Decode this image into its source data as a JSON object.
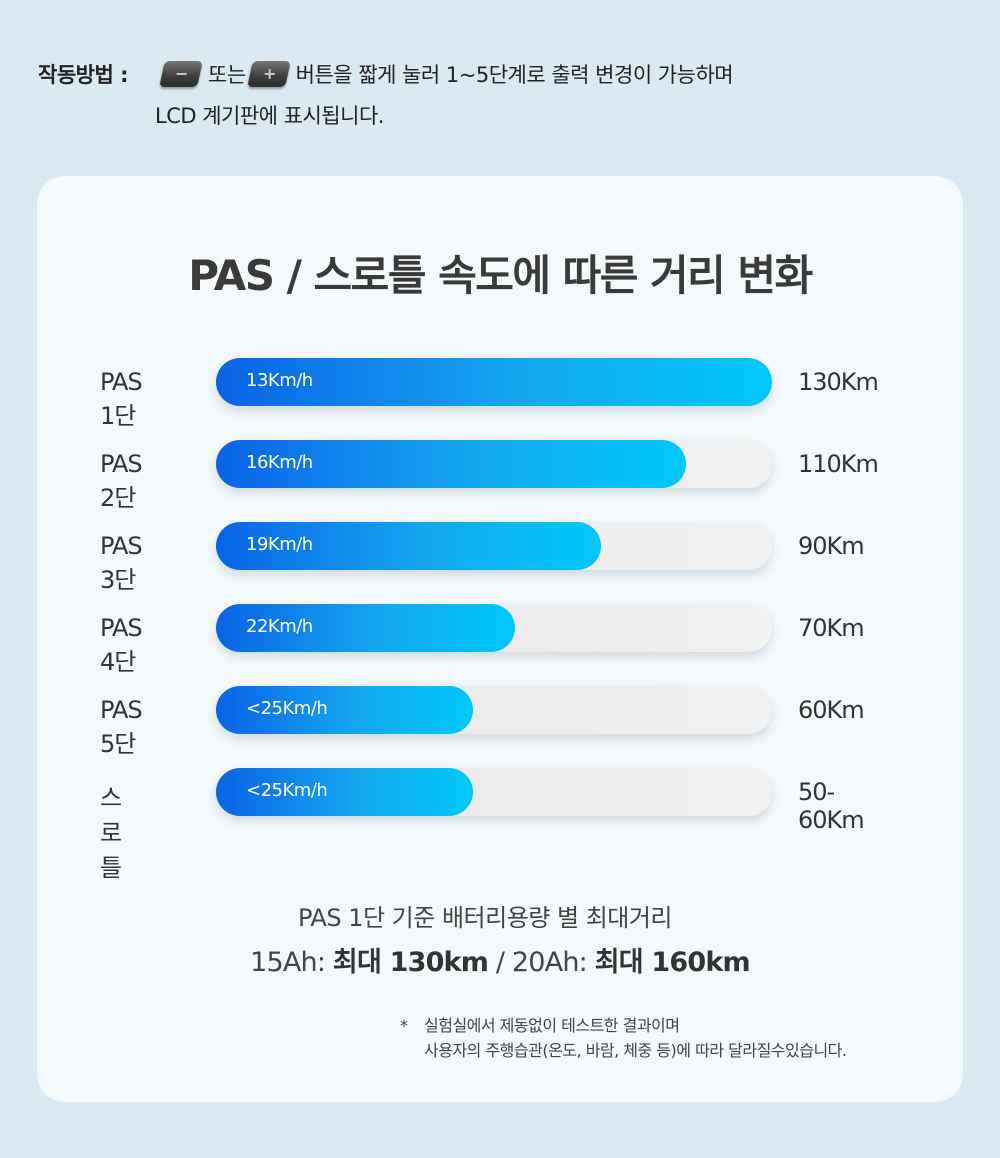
{
  "instructions": {
    "label": "작동방법 :",
    "icon_minus": "minus-key-icon",
    "icon_plus": "plus-key-icon",
    "or_text": "또는",
    "line1": "버튼을 짧게 눌러 1~5단계로 출력 변경이 가능하며",
    "line2": "LCD 계기판에 표시됩니다."
  },
  "chart_data": {
    "type": "bar",
    "title": "PAS / 스로틀  속도에 따른 거리 변화",
    "orientation": "horizontal",
    "categories": [
      "PAS 1단",
      "PAS 2단",
      "PAS 3단",
      "PAS 4단",
      "PAS 5단",
      "스로틀"
    ],
    "speed_labels": [
      "13Km/h",
      "16Km/h",
      "19Km/h",
      "22Km/h",
      "<25Km/h",
      "<25Km/h"
    ],
    "distance_labels": [
      "130Km",
      "110Km",
      "90Km",
      "70Km",
      "60Km",
      "50-60Km"
    ],
    "values": [
      130,
      110,
      90,
      70,
      60,
      60
    ],
    "xlim": [
      0,
      130
    ],
    "grid": false,
    "colors": {
      "bar_start": "#0a63e6",
      "bar_end": "#00c8fa",
      "track": "#ececec"
    }
  },
  "notes": {
    "line1": "PAS 1단 기준 배터리용량 별 최대거리",
    "line2_a": "15Ah: ",
    "line2_b": "최대 130km",
    "line2_c": " / 20Ah: ",
    "line2_d": "최대 160km"
  },
  "footnote": {
    "star": "*",
    "line1": "실험실에서 제동없이 테스트한 결과이며",
    "line2": "사용자의 주행습관(온도, 바람, 체중 등)에 따라 달라질수있습니다."
  }
}
